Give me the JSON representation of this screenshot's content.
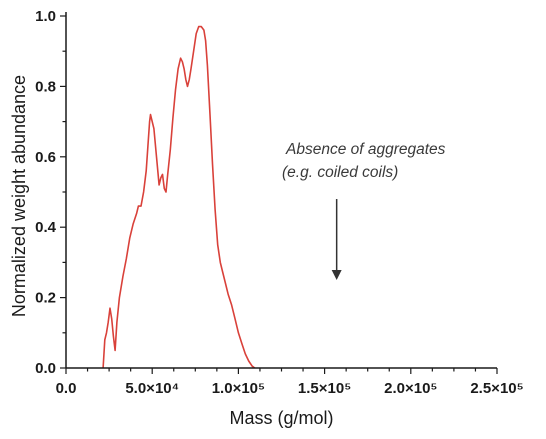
{
  "chart_data": {
    "type": "line",
    "title": "",
    "xlabel": "Mass (g/mol)",
    "ylabel": "Normalized weight abundance",
    "xlim": [
      0,
      250000
    ],
    "ylim": [
      0,
      1.0
    ],
    "x_ticks": [
      0,
      50000,
      100000,
      150000,
      200000,
      250000
    ],
    "x_tick_labels": [
      "0.0",
      "5.0×10⁴",
      "1.0×10⁵",
      "1.5×10⁵",
      "2.0×10⁵",
      "2.5×10⁵"
    ],
    "y_ticks": [
      0,
      0.2,
      0.4,
      0.6,
      0.8,
      1.0
    ],
    "y_tick_labels": [
      "0.0",
      "0.2",
      "0.4",
      "0.6",
      "0.8",
      "1.0"
    ],
    "grid": false,
    "series_color": "#d9413a",
    "series": [
      {
        "points": [
          [
            21500,
            0.0
          ],
          [
            22500,
            0.08
          ],
          [
            23500,
            0.1
          ],
          [
            24500,
            0.13
          ],
          [
            25500,
            0.17
          ],
          [
            26500,
            0.14
          ],
          [
            27500,
            0.09
          ],
          [
            28500,
            0.05
          ],
          [
            29500,
            0.13
          ],
          [
            31000,
            0.2
          ],
          [
            33000,
            0.26
          ],
          [
            35000,
            0.31
          ],
          [
            37000,
            0.37
          ],
          [
            39000,
            0.41
          ],
          [
            41000,
            0.44
          ],
          [
            42000,
            0.46
          ],
          [
            43500,
            0.46
          ],
          [
            45000,
            0.5
          ],
          [
            46500,
            0.56
          ],
          [
            47500,
            0.63
          ],
          [
            48500,
            0.7
          ],
          [
            49000,
            0.72
          ],
          [
            50000,
            0.7
          ],
          [
            51000,
            0.68
          ],
          [
            52500,
            0.6
          ],
          [
            54000,
            0.52
          ],
          [
            55000,
            0.54
          ],
          [
            56000,
            0.55
          ],
          [
            57000,
            0.51
          ],
          [
            58000,
            0.5
          ],
          [
            59000,
            0.55
          ],
          [
            60500,
            0.62
          ],
          [
            62000,
            0.71
          ],
          [
            63500,
            0.79
          ],
          [
            65000,
            0.85
          ],
          [
            66500,
            0.88
          ],
          [
            67500,
            0.87
          ],
          [
            68500,
            0.85
          ],
          [
            69500,
            0.82
          ],
          [
            70500,
            0.8
          ],
          [
            71500,
            0.82
          ],
          [
            72500,
            0.85
          ],
          [
            74000,
            0.9
          ],
          [
            75500,
            0.95
          ],
          [
            77000,
            0.97
          ],
          [
            78500,
            0.97
          ],
          [
            80000,
            0.96
          ],
          [
            81000,
            0.93
          ],
          [
            82000,
            0.86
          ],
          [
            83500,
            0.72
          ],
          [
            85000,
            0.58
          ],
          [
            86500,
            0.45
          ],
          [
            88000,
            0.35
          ],
          [
            89500,
            0.3
          ],
          [
            91000,
            0.27
          ],
          [
            92500,
            0.24
          ],
          [
            94000,
            0.21
          ],
          [
            96000,
            0.18
          ],
          [
            98000,
            0.14
          ],
          [
            100000,
            0.1
          ],
          [
            102000,
            0.07
          ],
          [
            104000,
            0.04
          ],
          [
            106000,
            0.02
          ],
          [
            108000,
            0.005
          ],
          [
            109500,
            0.0
          ]
        ]
      }
    ],
    "annotations": [
      {
        "lines": [
          "Absence of aggregates",
          "(e.g. coiled coils)"
        ],
        "arrow_from": [
          157000,
          0.48
        ],
        "arrow_to": [
          157000,
          0.25
        ]
      }
    ]
  }
}
